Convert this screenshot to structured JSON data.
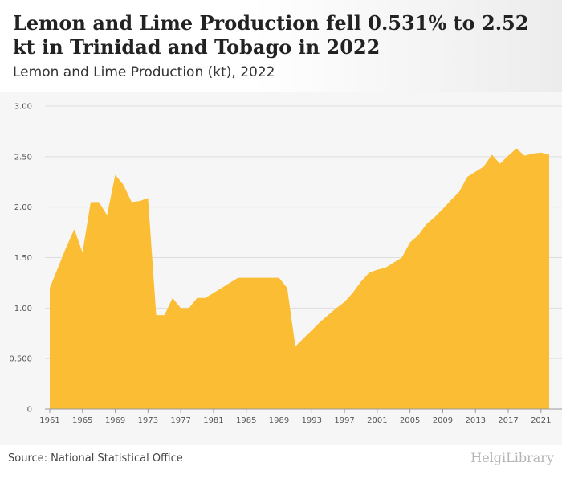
{
  "header": {
    "title": "Lemon and Lime Production fell 0.531% to 2.52 kt in Trinidad and Tobago in 2022",
    "subtitle": "Lemon and Lime Production (kt), 2022"
  },
  "footer": {
    "source": "Source: National Statistical Office",
    "logo_text": "HelgiLibrary"
  },
  "colors": {
    "area": "#fbbd33",
    "grid": "#dddddd",
    "axis": "#999999"
  },
  "chart_data": {
    "type": "area",
    "title": "Lemon and Lime Production fell 0.531% to 2.52 kt in Trinidad and Tobago in 2022",
    "subtitle": "Lemon and Lime Production (kt), 2022",
    "xlabel": "",
    "ylabel": "",
    "x_range": [
      1961,
      2022
    ],
    "ylim": [
      0,
      3
    ],
    "y_ticks": [
      0,
      0.5,
      1,
      1.5,
      2,
      2.5,
      3
    ],
    "y_tick_labels": [
      "0",
      "0.500",
      "1.00",
      "1.50",
      "2.00",
      "2.50",
      "3.00"
    ],
    "x_tick_labels": [
      "1961",
      "1965",
      "1969",
      "1973",
      "1977",
      "1981",
      "1985",
      "1989",
      "1993",
      "1997",
      "2001",
      "2005",
      "2009",
      "2013",
      "2017",
      "2021"
    ],
    "grid": true,
    "legend": "none",
    "series": [
      {
        "x": [
          1961,
          1962,
          1963,
          1964,
          1965,
          1966,
          1967,
          1968,
          1969,
          1970,
          1971,
          1972,
          1973,
          1974,
          1975,
          1976,
          1977,
          1978,
          1979,
          1980,
          1981,
          1982,
          1983,
          1984,
          1985,
          1986,
          1987,
          1988,
          1989,
          1990,
          1991,
          1992,
          1993,
          1994,
          1995,
          1996,
          1997,
          1998,
          1999,
          2000,
          2001,
          2002,
          2003,
          2004,
          2005,
          2006,
          2007,
          2008,
          2009,
          2010,
          2011,
          2012,
          2013,
          2014,
          2015,
          2016,
          2017,
          2018,
          2019,
          2020,
          2021,
          2022
        ],
        "values": [
          1.2,
          1.4,
          1.6,
          1.78,
          1.55,
          2.05,
          2.05,
          1.92,
          2.32,
          2.22,
          2.05,
          2.06,
          2.09,
          0.93,
          0.93,
          1.1,
          1.0,
          1.0,
          1.1,
          1.1,
          1.15,
          1.2,
          1.25,
          1.3,
          1.3,
          1.3,
          1.3,
          1.3,
          1.3,
          1.2,
          0.62,
          0.7,
          0.78,
          0.86,
          0.93,
          1.0,
          1.06,
          1.15,
          1.26,
          1.35,
          1.38,
          1.4,
          1.45,
          1.5,
          1.65,
          1.72,
          1.83,
          1.9,
          1.98,
          2.07,
          2.15,
          2.3,
          2.35,
          2.4,
          2.52,
          2.43,
          2.51,
          2.58,
          2.51,
          2.53,
          2.54,
          2.52
        ]
      }
    ]
  }
}
